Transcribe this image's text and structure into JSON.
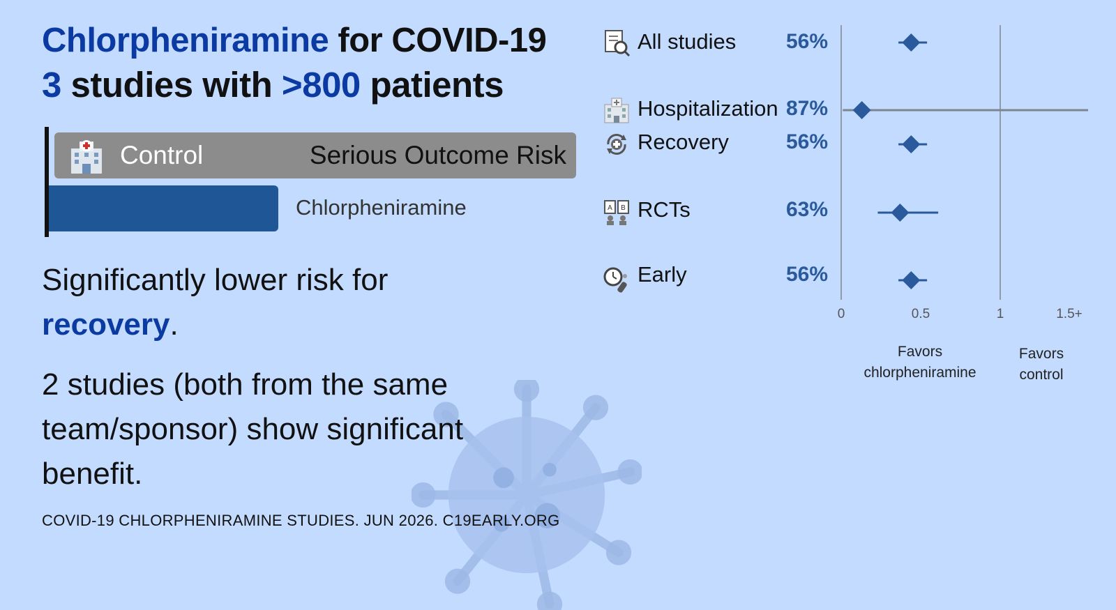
{
  "header": {
    "drug": "Chlorpheniramine",
    "for_text": " for COVID-19",
    "study_count": "3",
    "studies_with": " studies with ",
    "patients_count": ">800",
    "patients_text": " patients"
  },
  "risk_panel": {
    "control_label": "Control",
    "risk_label": "Serious Outcome Risk",
    "treatment_label": "Chlorpheniramine",
    "control_risk": 1.0,
    "treatment_risk": 0.44
  },
  "finding": {
    "prefix": "Significantly lower risk for ",
    "outcome": "recovery",
    "suffix": "."
  },
  "detail": "2 studies (both from the same team/sponsor) show significant benefit.",
  "footer": "COVID-19 CHLORPHENIRAMINE STUDIES. JUN 2026. C19EARLY.ORG",
  "icons": [
    "document-search-icon",
    "hospital-icon",
    "recovery-icon",
    "rct-icon",
    "early-clock-icon",
    "virus-icon"
  ],
  "colors": {
    "background": "#c3dbff",
    "accent": "#0b3aa2",
    "marker": "#2a5a9c",
    "control_bar": "#8c8c8c",
    "treatment_bar": "#1f5695"
  },
  "chart_data": {
    "type": "forest",
    "xlim": [
      0,
      1.5
    ],
    "ticks": [
      {
        "value": 0,
        "label": "0"
      },
      {
        "value": 0.5,
        "label": "0.5"
      },
      {
        "value": 1,
        "label": "1"
      },
      {
        "value": 1.5,
        "label": "1.5+"
      }
    ],
    "reference_line": 1,
    "favors_left": "Favors chlorpheniramine",
    "favors_right": "Favors control",
    "rows": [
      {
        "label": "All studies",
        "percent": "56%",
        "icon": "document-search-icon",
        "estimate": 0.44,
        "lower": 0.36,
        "upper": 0.54
      },
      {
        "label": "Hospitalization",
        "percent": "87%",
        "icon": "hospital-icon",
        "estimate": 0.13,
        "lower": 0.01,
        "upper": 1.5
      },
      {
        "label": "Recovery",
        "percent": "56%",
        "icon": "recovery-icon",
        "estimate": 0.44,
        "lower": 0.36,
        "upper": 0.54
      },
      {
        "label": "RCTs",
        "percent": "63%",
        "icon": "rct-icon",
        "estimate": 0.37,
        "lower": 0.23,
        "upper": 0.61
      },
      {
        "label": "Early",
        "percent": "56%",
        "icon": "early-clock-icon",
        "estimate": 0.44,
        "lower": 0.36,
        "upper": 0.54
      }
    ]
  }
}
